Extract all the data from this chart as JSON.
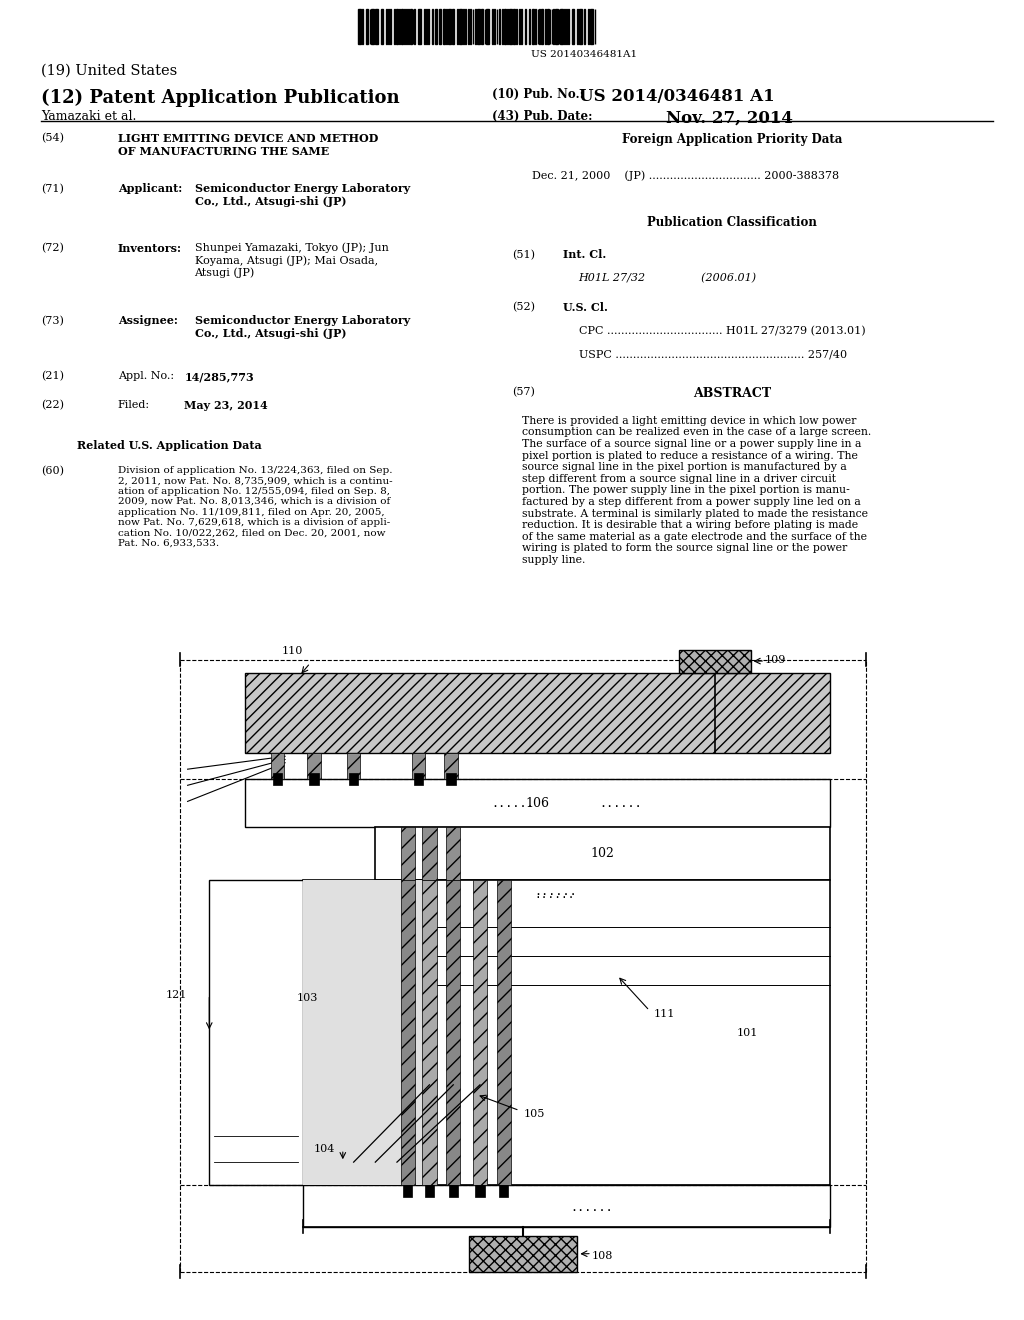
{
  "bg_color": "#ffffff",
  "barcode_text": "US 20140346481A1",
  "title_19": "(19) United States",
  "title_12": "(12) Patent Application Publication",
  "pub_no_label": "(10) Pub. No.:",
  "pub_no": "US 2014/0346481 A1",
  "authors": "Yamazaki et al.",
  "pub_date_label": "(43) Pub. Date:",
  "pub_date": "Nov. 27, 2014",
  "field_54_label": "(54)",
  "field_54": "LIGHT EMITTING DEVICE AND METHOD\nOF MANUFACTURING THE SAME",
  "field_71_label": "(71)",
  "field_71_key": "Applicant:",
  "field_71_val": "Semiconductor Energy Laboratory\nCo., Ltd., Atsugi-shi (JP)",
  "field_72_label": "(72)",
  "field_72_key": "Inventors:",
  "field_72_val": "Shunpei Yamazaki, Tokyo (JP); Jun\nKoyama, Atsugi (JP); Mai Osada,\nAtsugi (JP)",
  "field_73_label": "(73)",
  "field_73_key": "Assignee:",
  "field_73_val": "Semiconductor Energy Laboratory\nCo., Ltd., Atsugi-shi (JP)",
  "field_21_label": "(21)",
  "field_21_key": "Appl. No.:",
  "field_21_val": "14/285,773",
  "field_22_label": "(22)",
  "field_22_key": "Filed:",
  "field_22_val": "May 23, 2014",
  "related_header": "Related U.S. Application Data",
  "field_60_label": "(60)",
  "field_60_val": "Division of application No. 13/224,363, filed on Sep.\n2, 2011, now Pat. No. 8,735,909, which is a continu-\nation of application No. 12/555,094, filed on Sep. 8,\n2009, now Pat. No. 8,013,346, which is a division of\napplication No. 11/109,811, filed on Apr. 20, 2005,\nnow Pat. No. 7,629,618, which is a division of appli-\ncation No. 10/022,262, filed on Dec. 20, 2001, now\nPat. No. 6,933,533.",
  "field_30_header": "Foreign Application Priority Data",
  "field_30_val": "Dec. 21, 2000    (JP) ................................ 2000-388378",
  "pub_class_header": "Publication Classification",
  "field_51_label": "(51)",
  "field_51_key": "Int. Cl.",
  "field_51_val": "H01L 27/32                (2006.01)",
  "field_52_label": "(52)",
  "field_52_key": "U.S. Cl.",
  "field_52_cpc": "CPC ................................. H01L 27/3279 (2013.01)",
  "field_52_uspc": "USPC ...................................................... 257/40",
  "field_57_label": "(57)",
  "field_57_header": "ABSTRACT",
  "abstract_text": "There is provided a light emitting device in which low power\nconsumption can be realized even in the case of a large screen.\nThe surface of a source signal line or a power supply line in a\npixel portion is plated to reduce a resistance of a wiring. The\nsource signal line in the pixel portion is manufactured by a\nstep different from a source signal line in a driver circuit\nportion. The power supply line in the pixel portion is manu-\nfactured by a step different from a power supply line led on a\nsubstrate. A terminal is similarly plated to made the resistance\nreduction. It is desirable that a wiring before plating is made\nof the same material as a gate electrode and the surface of the\nwiring is plated to form the source signal line or the power\nsupply line."
}
